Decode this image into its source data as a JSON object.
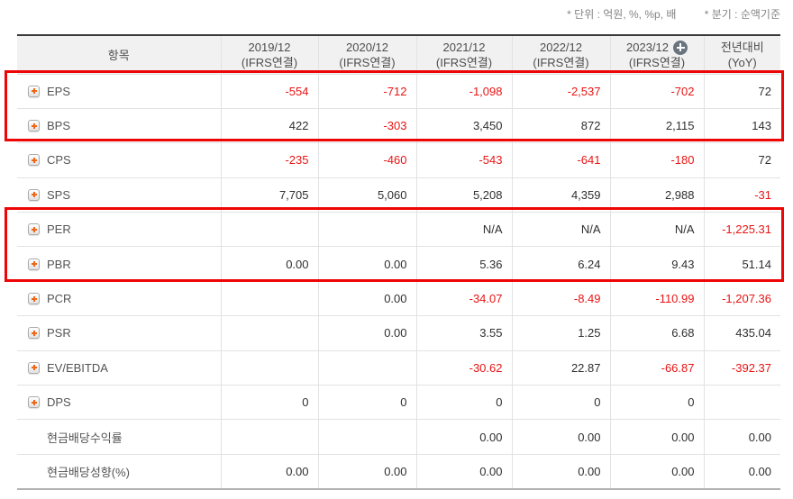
{
  "notes": {
    "unit": "* 단위 : 억원, %, %p, 배",
    "basis": "* 분기 : 순액기준"
  },
  "table": {
    "item_header": "항목",
    "columns": [
      {
        "period": "2019/12",
        "basis": "(IFRS연결)",
        "plus_badge": false
      },
      {
        "period": "2020/12",
        "basis": "(IFRS연결)",
        "plus_badge": false
      },
      {
        "period": "2021/12",
        "basis": "(IFRS연결)",
        "plus_badge": false
      },
      {
        "period": "2022/12",
        "basis": "(IFRS연결)",
        "plus_badge": false
      },
      {
        "period": "2023/12",
        "basis": "(IFRS연결)",
        "plus_badge": true
      },
      {
        "period": "전년대비",
        "basis": "(YoY)",
        "plus_badge": false
      }
    ],
    "rows": [
      {
        "label": "EPS",
        "expand_button": true,
        "values": [
          "-554",
          "-712",
          "-1,098",
          "-2,537",
          "-702",
          "72"
        ]
      },
      {
        "label": "BPS",
        "expand_button": true,
        "values": [
          "422",
          "-303",
          "3,450",
          "872",
          "2,115",
          "143"
        ]
      },
      {
        "label": "CPS",
        "expand_button": true,
        "values": [
          "-235",
          "-460",
          "-543",
          "-641",
          "-180",
          "72"
        ]
      },
      {
        "label": "SPS",
        "expand_button": true,
        "values": [
          "7,705",
          "5,060",
          "5,208",
          "4,359",
          "2,988",
          "-31"
        ]
      },
      {
        "label": "PER",
        "expand_button": true,
        "values": [
          "",
          "",
          "N/A",
          "N/A",
          "N/A",
          "-1,225.31"
        ]
      },
      {
        "label": "PBR",
        "expand_button": true,
        "values": [
          "0.00",
          "0.00",
          "5.36",
          "6.24",
          "9.43",
          "51.14"
        ]
      },
      {
        "label": "PCR",
        "expand_button": true,
        "values": [
          "",
          "0.00",
          "-34.07",
          "-8.49",
          "-110.99",
          "-1,207.36"
        ]
      },
      {
        "label": "PSR",
        "expand_button": true,
        "values": [
          "",
          "0.00",
          "3.55",
          "1.25",
          "6.68",
          "435.04"
        ]
      },
      {
        "label": "EV/EBITDA",
        "expand_button": true,
        "values": [
          "",
          "",
          "-30.62",
          "22.87",
          "-66.87",
          "-392.37"
        ]
      },
      {
        "label": "DPS",
        "expand_button": true,
        "values": [
          "0",
          "0",
          "0",
          "0",
          "0",
          ""
        ]
      },
      {
        "label": "현금배당수익률",
        "expand_button": false,
        "values": [
          "",
          "",
          "0.00",
          "0.00",
          "0.00",
          "0.00"
        ]
      },
      {
        "label": "현금배당성향(%)",
        "expand_button": false,
        "values": [
          "0.00",
          "0.00",
          "0.00",
          "0.00",
          "0.00",
          "0.00"
        ]
      }
    ],
    "highlighted_row_groups": [
      [
        "EPS",
        "BPS"
      ],
      [
        "PER",
        "PBR"
      ]
    ]
  },
  "colors": {
    "negative_value": "#e81414",
    "highlight_border": "#ee0505",
    "expand_plus": "#ef6617",
    "header_badge_bg": "#6a747e",
    "header_bg": "#f1f1f1"
  }
}
